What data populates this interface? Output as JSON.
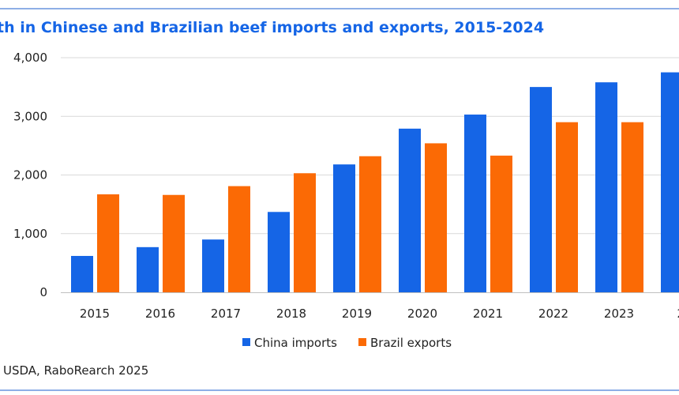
{
  "chart_data": {
    "type": "bar",
    "title": "th in Chinese and Brazilian beef imports and exports, 2015-2024",
    "categories": [
      "2015",
      "2016",
      "2017",
      "2018",
      "2019",
      "2020",
      "2021",
      "2022",
      "2023",
      "20"
    ],
    "series": [
      {
        "name": "China imports",
        "color": "#1565e6",
        "values": [
          620,
          770,
          900,
          1370,
          2180,
          2790,
          3030,
          3500,
          3580,
          3750
        ]
      },
      {
        "name": "Brazil exports",
        "color": "#fb6a05",
        "values": [
          1670,
          1660,
          1810,
          2030,
          2320,
          2540,
          2330,
          2900,
          2900,
          null
        ]
      }
    ],
    "ylim": [
      0,
      4000
    ],
    "yticks": [
      "0",
      "1,000",
      "2,000",
      "3,000",
      "4,000"
    ],
    "xlabel": "",
    "ylabel": "",
    "grid": "horizontal",
    "legend": "bottom"
  },
  "source_note": "USDA, RaboRearch 2025",
  "colors": {
    "frame_line": "#4a7fd6",
    "grid": "#d9d9d9",
    "axis": "#bfbfbf"
  }
}
